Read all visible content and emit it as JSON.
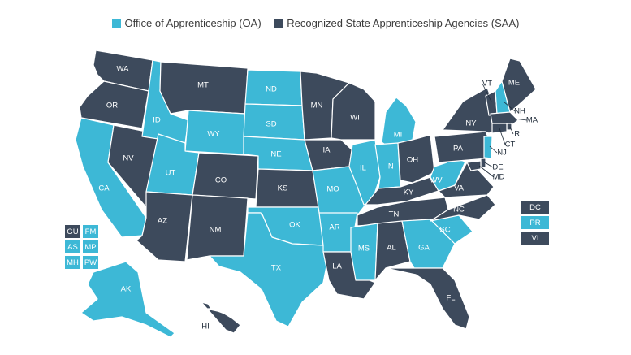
{
  "colors": {
    "oa": "#3db8d6",
    "saa": "#3d4a5c"
  },
  "legend": [
    {
      "key": "oa",
      "label": "Office of Apprenticeship (OA)"
    },
    {
      "key": "saa",
      "label": "Recognized State Apprenticeship Agencies (SAA)"
    }
  ],
  "states": {
    "WA": "saa",
    "OR": "saa",
    "CA": "oa",
    "NV": "saa",
    "ID": "oa",
    "MT": "saa",
    "WY": "oa",
    "UT": "oa",
    "AZ": "saa",
    "CO": "saa",
    "NM": "saa",
    "ND": "oa",
    "SD": "oa",
    "NE": "oa",
    "KS": "saa",
    "OK": "oa",
    "TX": "oa",
    "MN": "saa",
    "IA": "saa",
    "MO": "oa",
    "AR": "oa",
    "LA": "saa",
    "WI": "saa",
    "IL": "oa",
    "MI": "oa",
    "IN": "oa",
    "OH": "saa",
    "KY": "saa",
    "TN": "saa",
    "MS": "oa",
    "AL": "saa",
    "GA": "oa",
    "FL": "saa",
    "SC": "oa",
    "NC": "saa",
    "VA": "saa",
    "WV": "oa",
    "PA": "saa",
    "NY": "saa",
    "VT": "saa",
    "NH": "oa",
    "ME": "saa",
    "MA": "saa",
    "RI": "saa",
    "CT": "saa",
    "NJ": "oa",
    "DE": "saa",
    "MD": "saa",
    "AK": "oa",
    "HI": "saa"
  },
  "callout_labels": [
    "VT",
    "NH",
    "MA",
    "RI",
    "CT",
    "NJ",
    "DE",
    "MD",
    "HI"
  ],
  "territories_left": [
    {
      "code": "GU",
      "status": "saa"
    },
    {
      "code": "FM",
      "status": "oa"
    },
    {
      "code": "AS",
      "status": "oa"
    },
    {
      "code": "MP",
      "status": "oa"
    },
    {
      "code": "MH",
      "status": "oa"
    },
    {
      "code": "PW",
      "status": "oa"
    }
  ],
  "territories_right": [
    {
      "code": "DC",
      "status": "saa"
    },
    {
      "code": "PR",
      "status": "oa"
    },
    {
      "code": "VI",
      "status": "saa"
    }
  ]
}
